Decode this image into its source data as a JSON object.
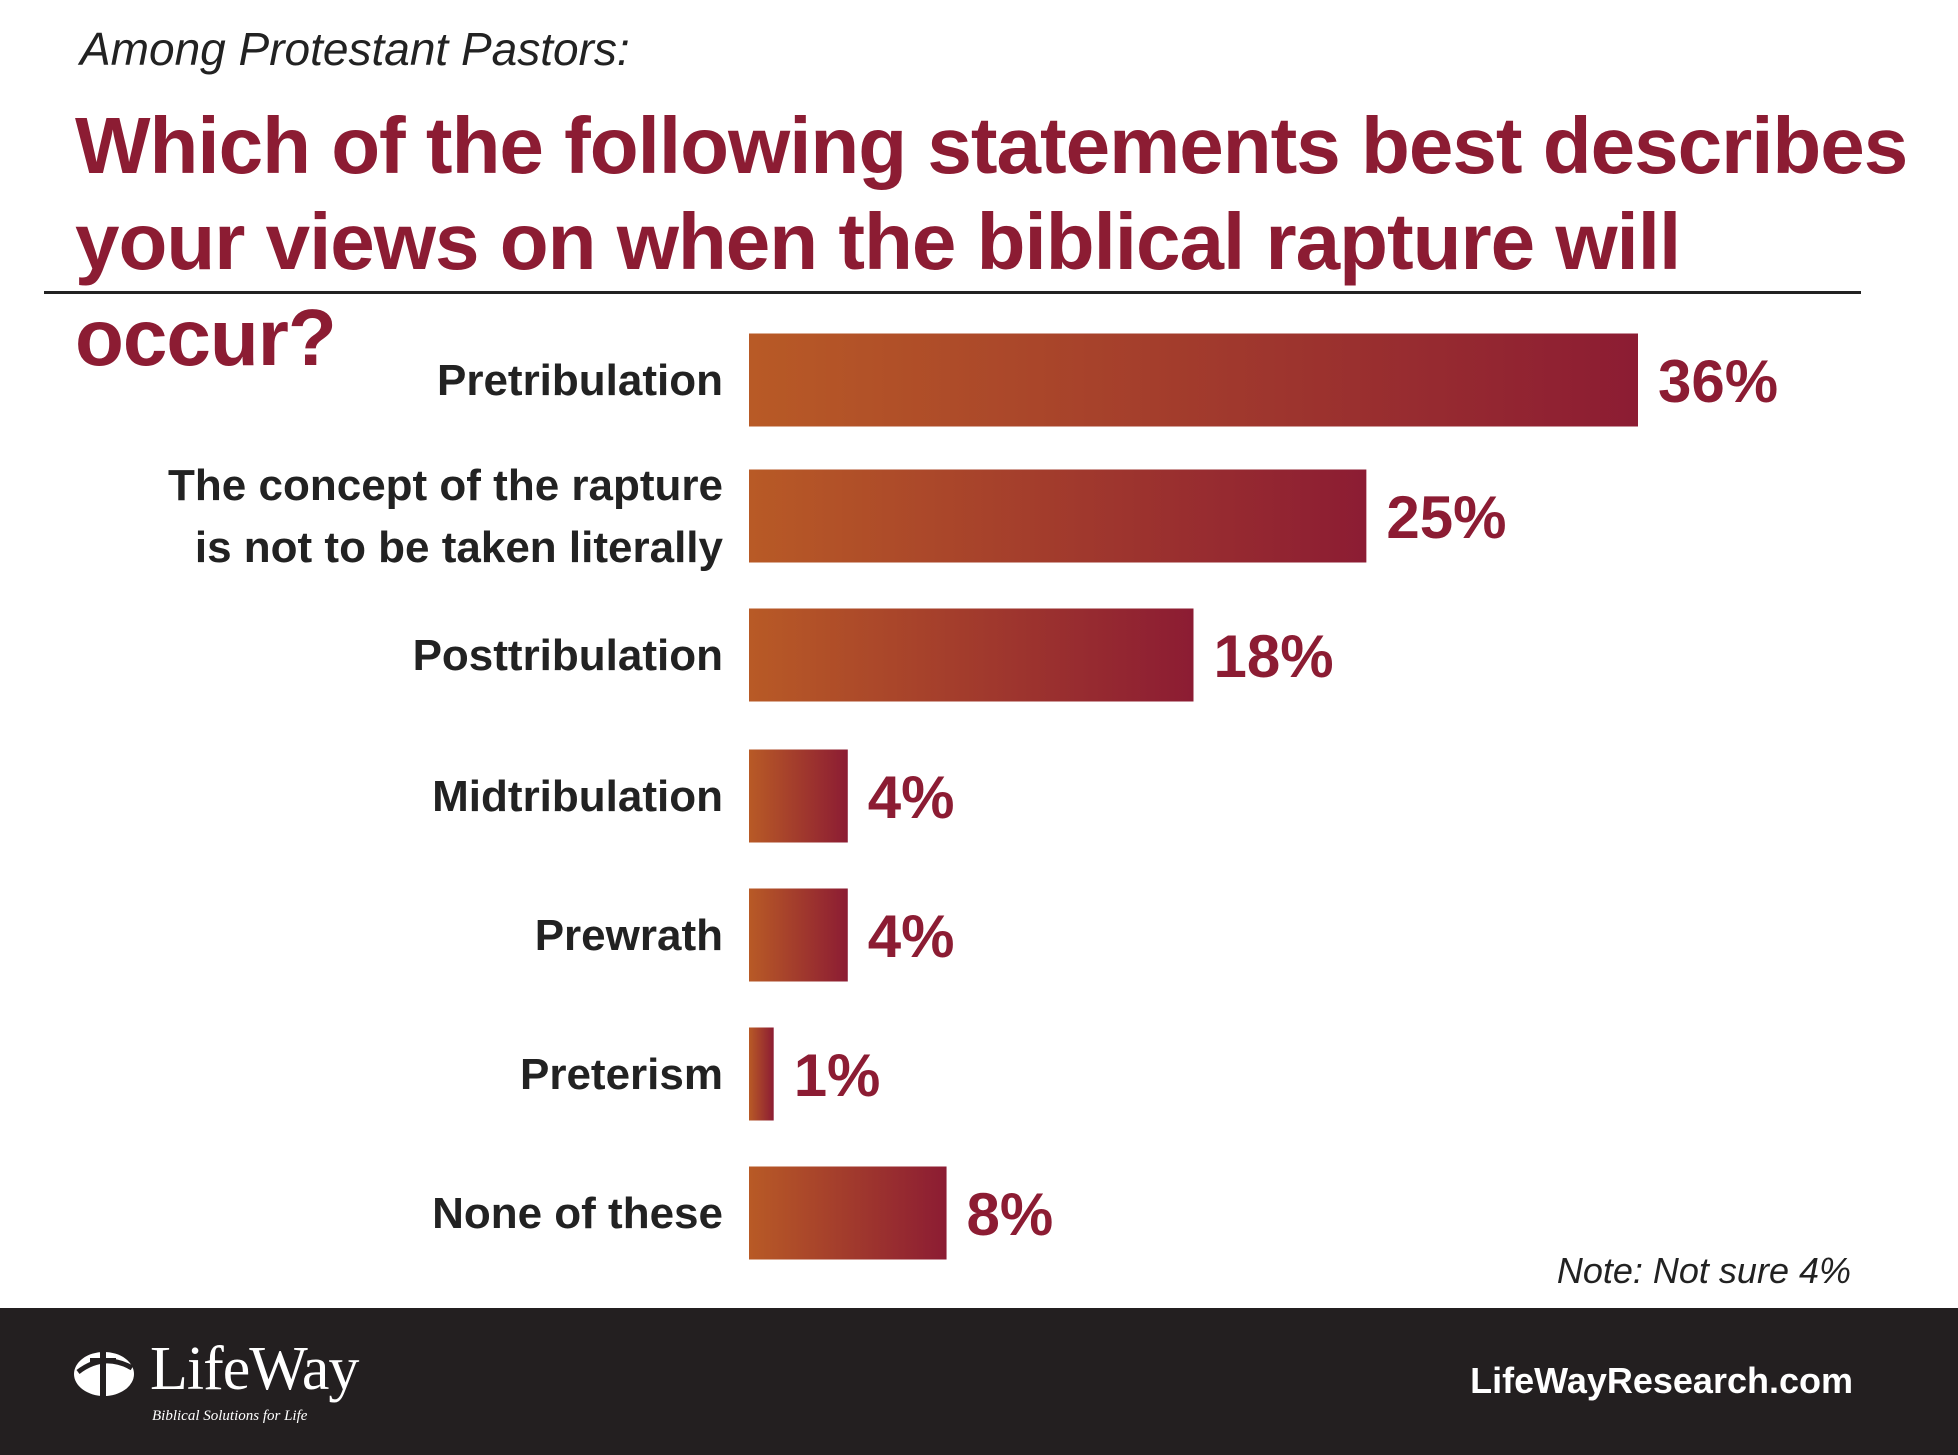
{
  "header": {
    "subtitle": "Among Protestant Pastors:",
    "title": "Which of the following statements best describes your views on when the biblical rapture will occur?"
  },
  "chart_data": {
    "type": "bar",
    "orientation": "horizontal",
    "categories": [
      [
        "Pretribulation"
      ],
      [
        "The concept of the rapture",
        "is not to be taken literally"
      ],
      [
        "Posttribulation"
      ],
      [
        "Midtribulation"
      ],
      [
        "Prewrath"
      ],
      [
        "Preterism"
      ],
      [
        "None of these"
      ]
    ],
    "values": [
      36,
      25,
      18,
      4,
      4,
      1,
      8
    ],
    "value_labels": [
      "36%",
      "25%",
      "18%",
      "4%",
      "4%",
      "1%",
      "8%"
    ],
    "unit": "%",
    "xlim": [
      0,
      36
    ],
    "grid": false,
    "legend": "none",
    "bar_gradient": [
      "#b85a26",
      "#8c1c33"
    ],
    "label_color": "#222222",
    "value_color": "#8c1c33"
  },
  "note": "Note: Not sure 4%",
  "footer": {
    "logo_text": "LifeWay",
    "logo_tagline": "Biblical Solutions for Life",
    "website": "LifeWayResearch.com"
  },
  "colors": {
    "title": "#8c1c33",
    "footer_bg": "#231f20"
  }
}
